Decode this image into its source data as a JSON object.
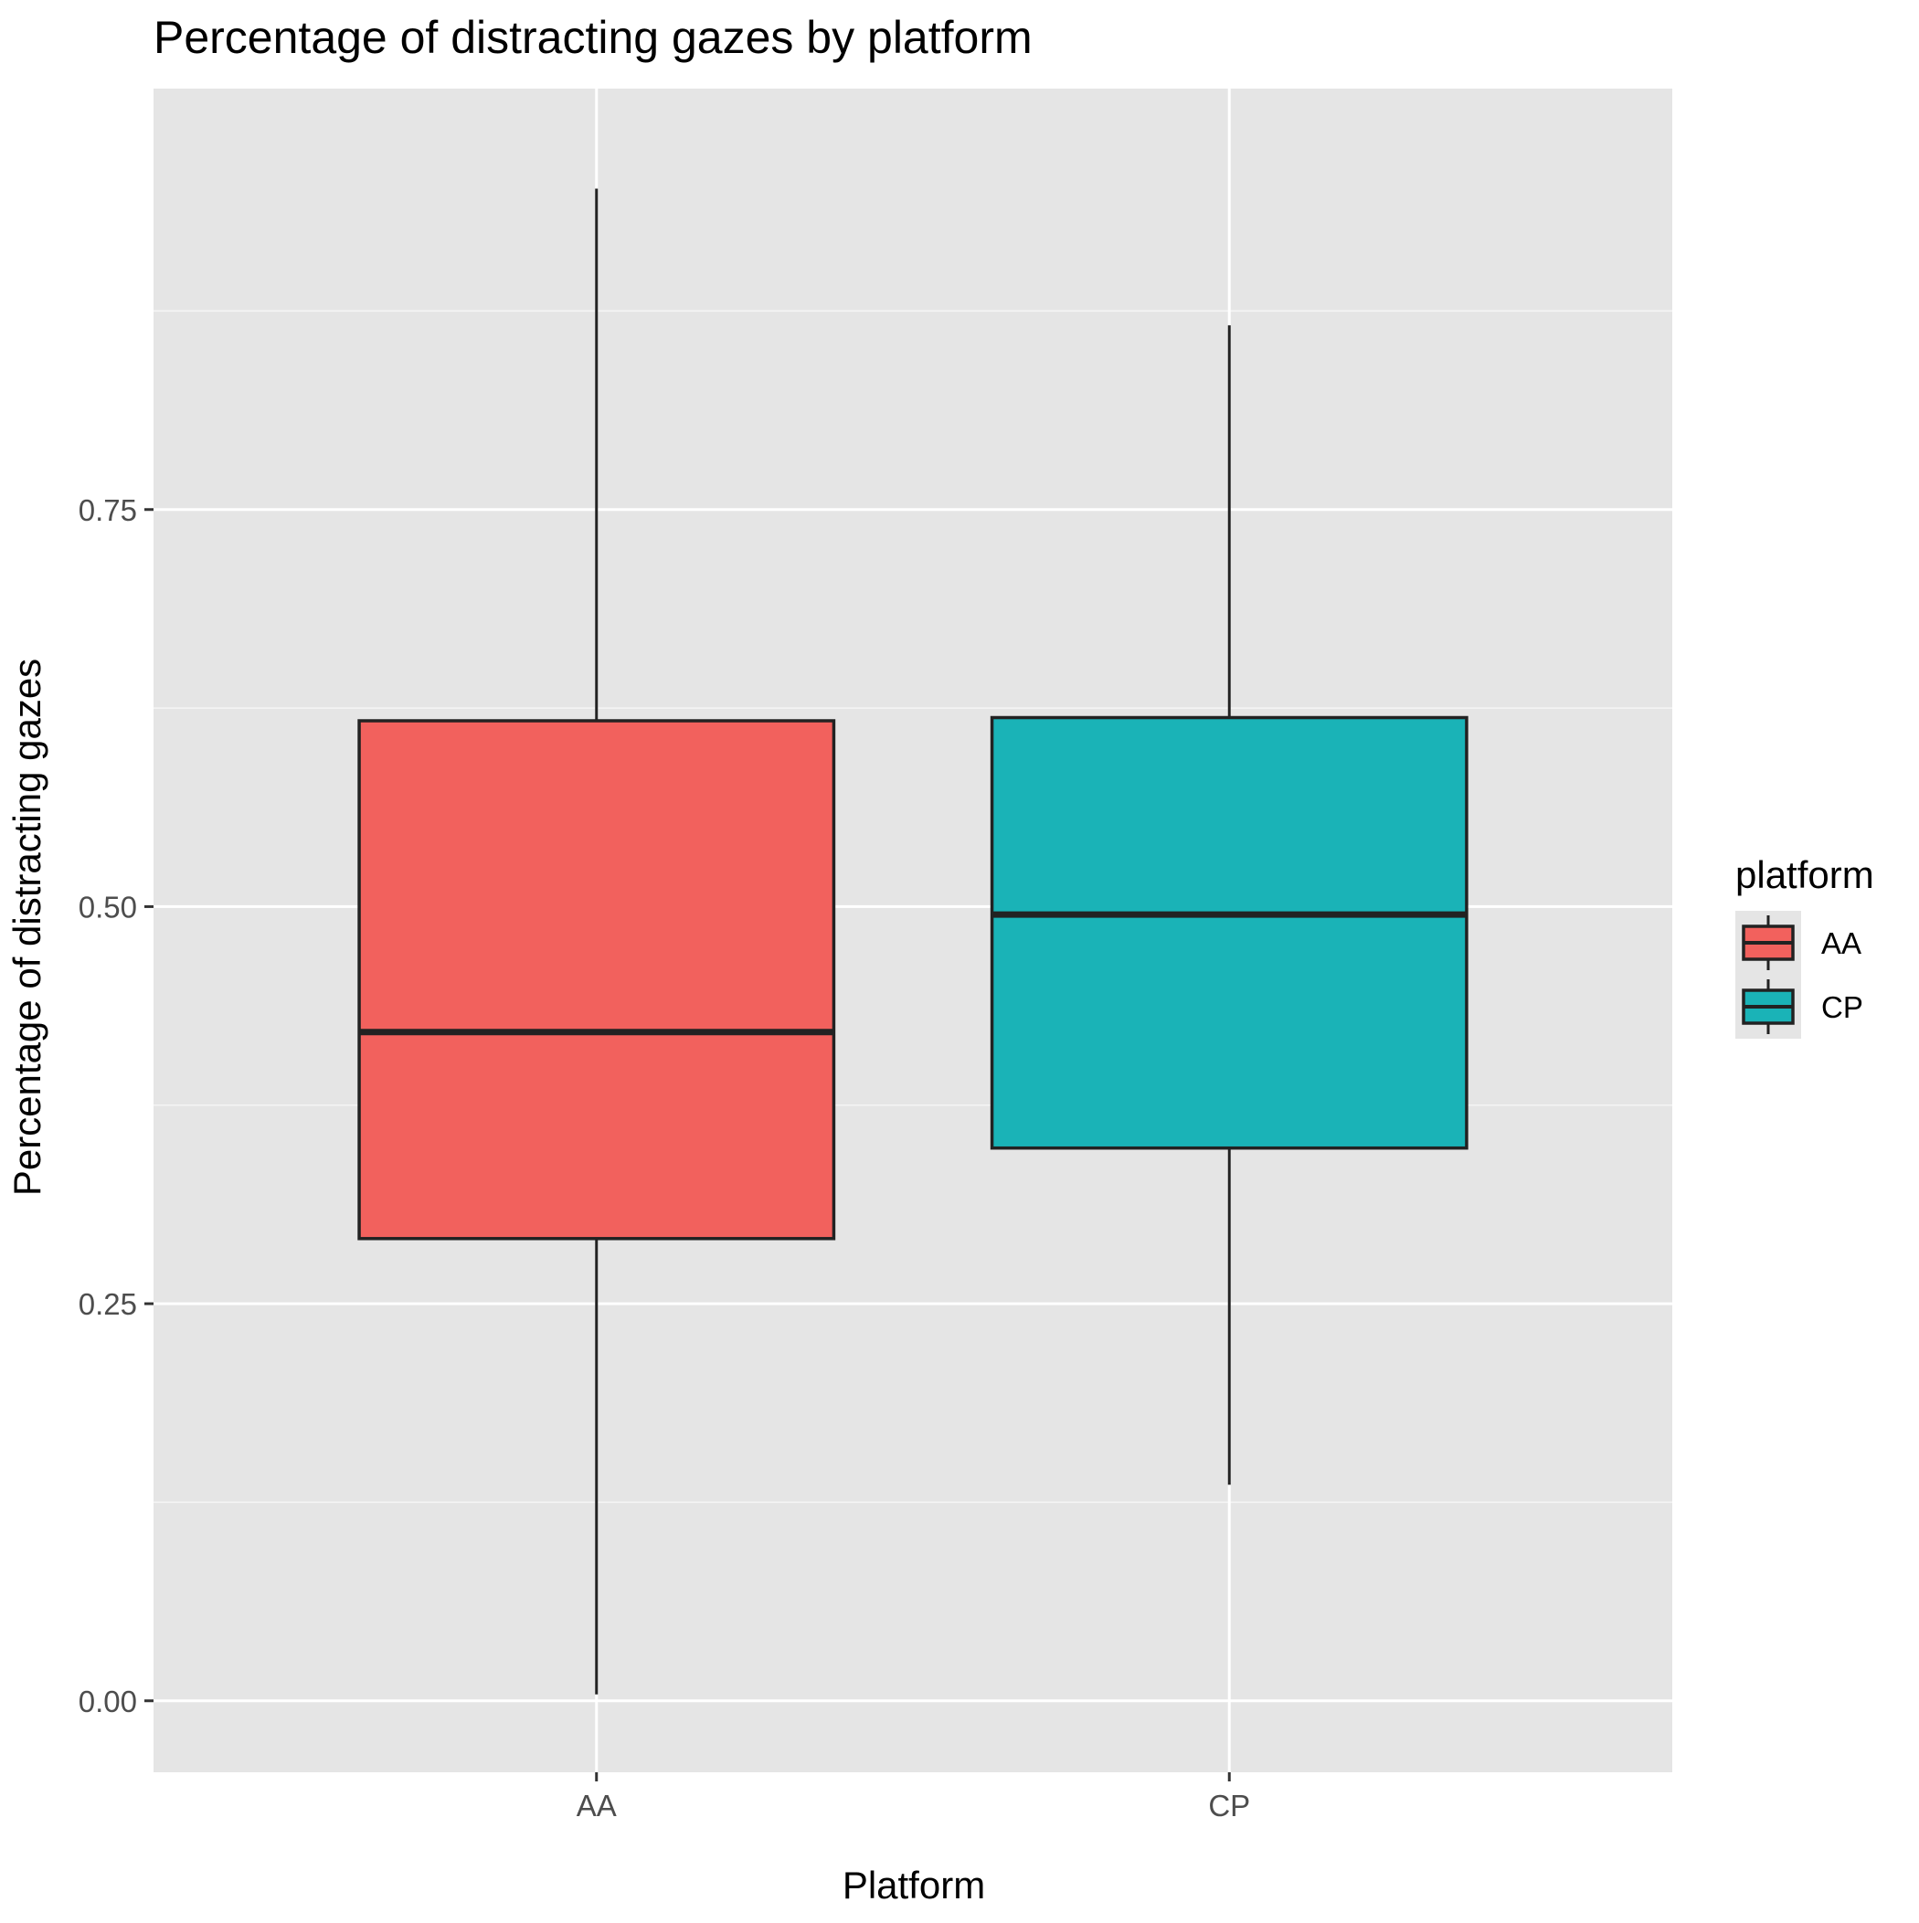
{
  "chart_data": {
    "type": "boxplot",
    "title": "Percentage of distracting gazes by platform",
    "xlabel": "Platform",
    "ylabel": "Percentage of distracting gazes",
    "categories": [
      "AA",
      "CP"
    ],
    "ylim": [
      -0.045,
      1.015
    ],
    "y_ticks": [
      0.0,
      0.25,
      0.5,
      0.75
    ],
    "y_tick_labels": [
      "0.00",
      "0.25",
      "0.50",
      "0.75"
    ],
    "grid": true,
    "legend": {
      "title": "platform",
      "position": "right",
      "entries": [
        "AA",
        "CP"
      ]
    },
    "series": [
      {
        "category": "AA",
        "color": "#F2615D",
        "min": 0.004,
        "q1": 0.291,
        "median": 0.421,
        "q3": 0.617,
        "max": 0.952
      },
      {
        "category": "CP",
        "color": "#1AB3B7",
        "min": 0.136,
        "q1": 0.348,
        "median": 0.495,
        "q3": 0.619,
        "max": 0.866
      }
    ]
  }
}
